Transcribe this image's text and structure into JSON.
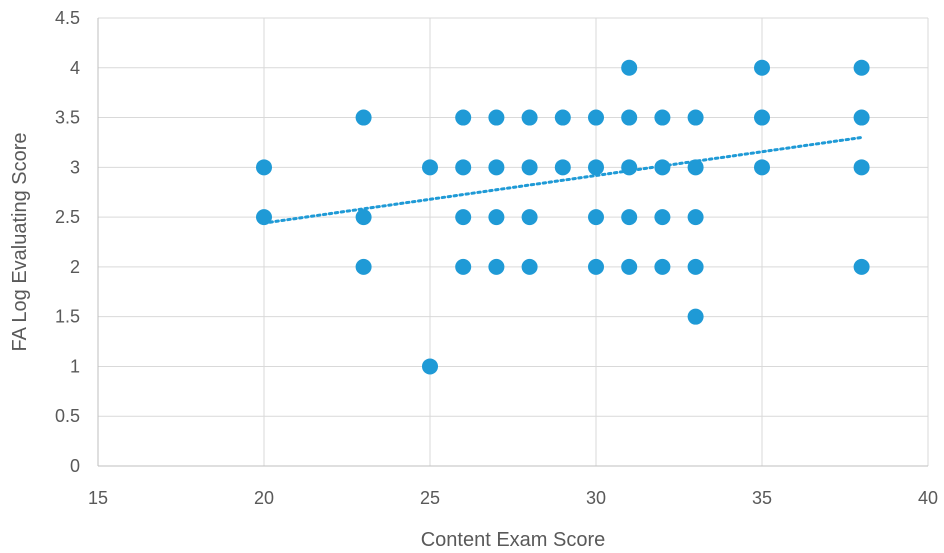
{
  "chart_data": {
    "type": "scatter",
    "title": "",
    "xlabel": "Content Exam Score",
    "ylabel": "FA Log Evaluating  Score",
    "xlim": [
      15,
      40
    ],
    "ylim": [
      0,
      4.5
    ],
    "xticks": [
      15,
      20,
      25,
      30,
      35,
      40
    ],
    "yticks": [
      0,
      0.5,
      1,
      1.5,
      2,
      2.5,
      3,
      3.5,
      4,
      4.5
    ],
    "xtick_labels": [
      "15",
      "20",
      "25",
      "30",
      "35",
      "40"
    ],
    "ytick_labels": [
      "0",
      "0.5",
      "1",
      "1.5",
      "2",
      "2.5",
      "3",
      "3.5",
      "4",
      "4.5"
    ],
    "grid": "vertical and horizontal",
    "legend": "none",
    "series": [
      {
        "points": [
          {
            "x": 20,
            "y": 3
          },
          {
            "x": 20,
            "y": 2.5
          },
          {
            "x": 23,
            "y": 3.5
          },
          {
            "x": 23,
            "y": 2.5
          },
          {
            "x": 23,
            "y": 2
          },
          {
            "x": 25,
            "y": 3
          },
          {
            "x": 25,
            "y": 1
          },
          {
            "x": 26,
            "y": 3.5
          },
          {
            "x": 26,
            "y": 3
          },
          {
            "x": 26,
            "y": 2.5
          },
          {
            "x": 26,
            "y": 2
          },
          {
            "x": 27,
            "y": 3.5
          },
          {
            "x": 27,
            "y": 3
          },
          {
            "x": 27,
            "y": 2.5
          },
          {
            "x": 27,
            "y": 2
          },
          {
            "x": 28,
            "y": 3.5
          },
          {
            "x": 28,
            "y": 3
          },
          {
            "x": 28,
            "y": 2.5
          },
          {
            "x": 28,
            "y": 2
          },
          {
            "x": 29,
            "y": 3.5
          },
          {
            "x": 29,
            "y": 3
          },
          {
            "x": 30,
            "y": 3.5
          },
          {
            "x": 30,
            "y": 3
          },
          {
            "x": 30,
            "y": 2.5
          },
          {
            "x": 30,
            "y": 2
          },
          {
            "x": 31,
            "y": 4
          },
          {
            "x": 31,
            "y": 3.5
          },
          {
            "x": 31,
            "y": 3
          },
          {
            "x": 31,
            "y": 2.5
          },
          {
            "x": 31,
            "y": 2
          },
          {
            "x": 32,
            "y": 3.5
          },
          {
            "x": 32,
            "y": 3
          },
          {
            "x": 32,
            "y": 2.5
          },
          {
            "x": 32,
            "y": 2
          },
          {
            "x": 33,
            "y": 3.5
          },
          {
            "x": 33,
            "y": 3
          },
          {
            "x": 33,
            "y": 2.5
          },
          {
            "x": 33,
            "y": 2
          },
          {
            "x": 33,
            "y": 1.5
          },
          {
            "x": 35,
            "y": 4
          },
          {
            "x": 35,
            "y": 3.5
          },
          {
            "x": 35,
            "y": 3
          },
          {
            "x": 38,
            "y": 4
          },
          {
            "x": 38,
            "y": 3.5
          },
          {
            "x": 38,
            "y": 3
          },
          {
            "x": 38,
            "y": 2
          }
        ]
      }
    ],
    "trendline": {
      "type": "linear",
      "style": "dotted",
      "x": [
        20,
        38
      ],
      "y": [
        2.44,
        3.3
      ]
    },
    "colors": {
      "point": "#1f9ad6",
      "trendline": "#1f9ad6"
    }
  }
}
